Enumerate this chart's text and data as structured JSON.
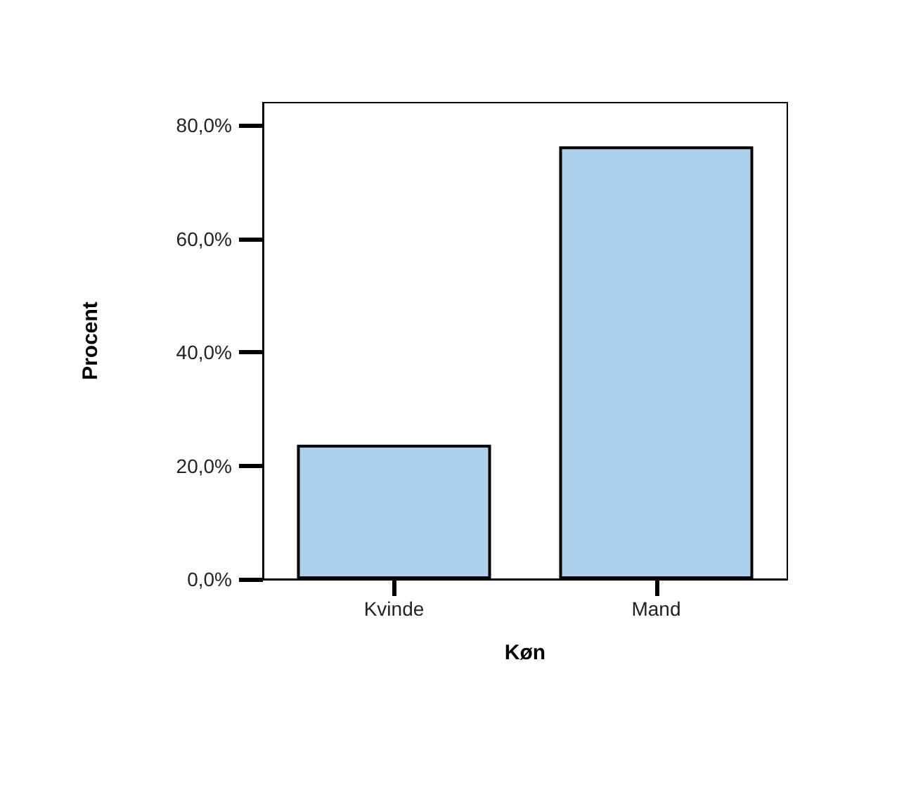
{
  "chart_data": {
    "type": "bar",
    "xlabel": "Køn",
    "ylabel": "Procent",
    "categories": [
      "Kvinde",
      "Mand"
    ],
    "values": [
      23.7,
      76.3
    ],
    "color": "#abcfed",
    "ylim": [
      0,
      84
    ],
    "yticks": [
      {
        "value": 0,
        "label": "0,0%"
      },
      {
        "value": 20,
        "label": "20,0%"
      },
      {
        "value": 40,
        "label": "40,0%"
      },
      {
        "value": 60,
        "label": "60,0%"
      },
      {
        "value": 80,
        "label": "80,0%"
      }
    ],
    "grid": false
  }
}
